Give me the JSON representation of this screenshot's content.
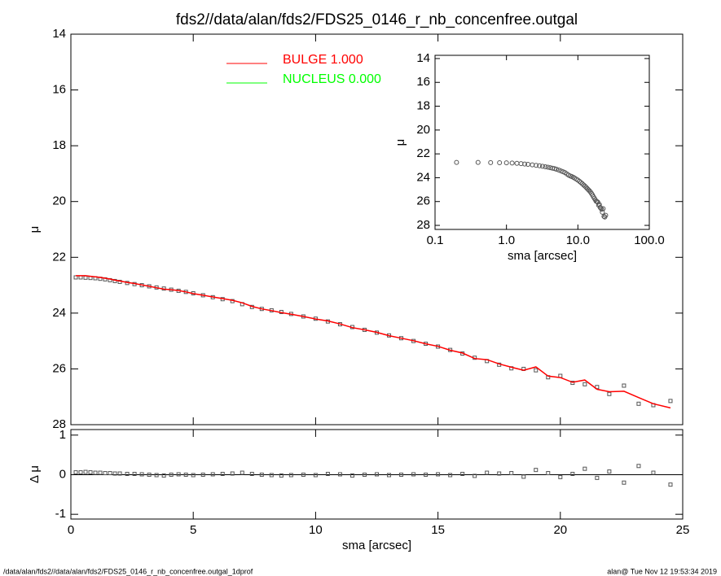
{
  "chart_data": [
    {
      "type": "scatter",
      "title": "fds2//data/alan/fds2/FDS25_0146_r_nb_concenfree.outgal",
      "y_label": "μ",
      "xlim": [
        0,
        25
      ],
      "xticks": [
        0,
        5,
        10,
        15,
        20,
        25
      ],
      "ylim": [
        28,
        14
      ],
      "yticks": [
        14,
        16,
        18,
        20,
        22,
        24,
        26,
        28
      ],
      "legend": [
        {
          "label": "BULGE  1.000",
          "color": "#ff0000"
        },
        {
          "label": "NUCLEUS  0.000",
          "color": "#00ff00"
        }
      ],
      "x": [
        0.2,
        0.4,
        0.6,
        0.8,
        1.0,
        1.2,
        1.4,
        1.6,
        1.8,
        2.0,
        2.3,
        2.6,
        2.9,
        3.2,
        3.5,
        3.8,
        4.1,
        4.4,
        4.7,
        5.0,
        5.4,
        5.8,
        6.2,
        6.6,
        7.0,
        7.4,
        7.8,
        8.2,
        8.6,
        9.0,
        9.5,
        10.0,
        10.5,
        11.0,
        11.5,
        12.0,
        12.5,
        13.0,
        13.5,
        14.0,
        14.5,
        15.0,
        15.5,
        16.0,
        16.5,
        17.0,
        17.5,
        18.0,
        18.5,
        19.0,
        19.5,
        20.0,
        20.5,
        21.0,
        21.5,
        22.0,
        22.6,
        23.2,
        23.8,
        24.5
      ],
      "series": [
        {
          "mark": "square",
          "color": "#555555",
          "values": [
            22.72,
            22.72,
            22.73,
            22.74,
            22.75,
            22.77,
            22.79,
            22.82,
            22.85,
            22.88,
            22.92,
            22.96,
            23.0,
            23.04,
            23.08,
            23.12,
            23.16,
            23.2,
            23.24,
            23.29,
            23.36,
            23.43,
            23.5,
            23.57,
            23.68,
            23.78,
            23.85,
            23.9,
            23.96,
            24.03,
            24.12,
            24.2,
            24.3,
            24.4,
            24.5,
            24.6,
            24.7,
            24.8,
            24.9,
            25.0,
            25.1,
            25.2,
            25.32,
            25.45,
            25.6,
            25.72,
            25.85,
            25.98,
            26.0,
            26.05,
            26.3,
            26.25,
            26.5,
            26.55,
            26.65,
            26.9,
            26.6,
            27.25,
            27.3,
            27.15
          ]
        },
        {
          "mark": "line",
          "color": "#ff0000",
          "values": [
            22.66,
            22.66,
            22.66,
            22.68,
            22.7,
            22.72,
            22.75,
            22.78,
            22.82,
            22.85,
            22.9,
            22.94,
            22.99,
            23.04,
            23.09,
            23.14,
            23.16,
            23.19,
            23.24,
            23.3,
            23.36,
            23.42,
            23.48,
            23.54,
            23.63,
            23.76,
            23.85,
            23.91,
            23.98,
            24.04,
            24.12,
            24.21,
            24.28,
            24.39,
            24.52,
            24.6,
            24.69,
            24.81,
            24.9,
            24.99,
            25.1,
            25.19,
            25.33,
            25.43,
            25.63,
            25.67,
            25.82,
            25.94,
            26.05,
            25.93,
            26.26,
            26.31,
            26.48,
            26.4,
            26.73,
            26.82,
            26.8,
            27.03,
            27.25,
            27.4
          ]
        }
      ]
    },
    {
      "type": "scatter",
      "x_label": "sma [arcsec]",
      "y_label": "Δ μ",
      "xlim": [
        0,
        25
      ],
      "xticks": [
        0,
        5,
        10,
        15,
        20,
        25
      ],
      "ylim": [
        -1.12,
        1.14
      ],
      "yticks": [
        -1,
        0,
        1
      ],
      "reference_line": 0,
      "x": [
        0.2,
        0.4,
        0.6,
        0.8,
        1.0,
        1.2,
        1.4,
        1.6,
        1.8,
        2.0,
        2.3,
        2.6,
        2.9,
        3.2,
        3.5,
        3.8,
        4.1,
        4.4,
        4.7,
        5.0,
        5.4,
        5.8,
        6.2,
        6.6,
        7.0,
        7.4,
        7.8,
        8.2,
        8.6,
        9.0,
        9.5,
        10.0,
        10.5,
        11.0,
        11.5,
        12.0,
        12.5,
        13.0,
        13.5,
        14.0,
        14.5,
        15.0,
        15.5,
        16.0,
        16.5,
        17.0,
        17.5,
        18.0,
        18.5,
        19.0,
        19.5,
        20.0,
        20.5,
        21.0,
        21.5,
        22.0,
        22.6,
        23.2,
        23.8,
        24.5
      ],
      "series": [
        {
          "mark": "square",
          "color": "#555555",
          "values": [
            0.06,
            0.06,
            0.07,
            0.06,
            0.05,
            0.05,
            0.04,
            0.04,
            0.03,
            0.03,
            0.02,
            0.02,
            0.01,
            0.0,
            -0.01,
            -0.02,
            0.0,
            0.01,
            0.0,
            -0.01,
            0.0,
            0.01,
            0.02,
            0.03,
            0.05,
            0.02,
            0.0,
            -0.01,
            -0.02,
            -0.01,
            0.0,
            -0.01,
            0.02,
            0.01,
            -0.02,
            0.0,
            0.01,
            -0.01,
            0.0,
            0.01,
            0.0,
            0.01,
            -0.01,
            0.02,
            -0.03,
            0.05,
            0.03,
            0.04,
            -0.05,
            0.12,
            0.04,
            -0.06,
            0.02,
            0.15,
            -0.08,
            0.08,
            -0.2,
            0.22,
            0.05,
            -0.25
          ]
        }
      ]
    },
    {
      "type": "scatter",
      "x_label": "sma [arcsec]",
      "y_label": "μ",
      "xscale": "log",
      "xlim": [
        0.1,
        100
      ],
      "xticks": [
        0.1,
        {
          "value": 1,
          "label": "1.0"
        },
        {
          "value": 10,
          "label": "10.0"
        },
        {
          "value": 100,
          "label": "100.0"
        }
      ],
      "ylim": [
        28.34,
        13.73
      ],
      "yticks": [
        14,
        16,
        18,
        20,
        22,
        24,
        26,
        28
      ],
      "x": [
        0.2,
        0.4,
        0.6,
        0.8,
        1.0,
        1.2,
        1.4,
        1.6,
        1.8,
        2.0,
        2.3,
        2.6,
        2.9,
        3.2,
        3.5,
        3.8,
        4.1,
        4.4,
        4.7,
        5.0,
        5.4,
        5.8,
        6.2,
        6.6,
        7.0,
        7.4,
        7.8,
        8.2,
        8.6,
        9.0,
        9.5,
        10.0,
        10.5,
        11.0,
        11.5,
        12.0,
        12.5,
        13.0,
        13.5,
        14.0,
        14.5,
        15.0,
        15.5,
        16.0,
        16.5,
        17.0,
        17.5,
        18.0,
        18.5,
        19.0,
        19.5,
        20.0,
        20.5,
        21.0,
        21.5,
        22.0,
        22.6,
        23.2,
        23.8,
        24.5
      ],
      "series": [
        {
          "mark": "circle",
          "color": "#555555",
          "values": [
            22.72,
            22.72,
            22.73,
            22.74,
            22.75,
            22.77,
            22.79,
            22.82,
            22.85,
            22.88,
            22.92,
            22.96,
            23.0,
            23.04,
            23.08,
            23.12,
            23.16,
            23.2,
            23.24,
            23.29,
            23.36,
            23.43,
            23.5,
            23.57,
            23.68,
            23.78,
            23.85,
            23.9,
            23.96,
            24.03,
            24.12,
            24.2,
            24.3,
            24.4,
            24.5,
            24.6,
            24.7,
            24.8,
            24.9,
            25.0,
            25.1,
            25.2,
            25.32,
            25.45,
            25.6,
            25.72,
            25.85,
            25.98,
            26.0,
            26.05,
            26.3,
            26.25,
            26.5,
            26.55,
            26.65,
            26.9,
            26.6,
            27.25,
            27.3,
            27.15
          ]
        }
      ]
    }
  ],
  "footer": {
    "left": "/data/alan/fds2//data/alan/fds2/FDS25_0146_r_nb_concenfree.outgal_1dprof",
    "right": "alan@  Tue Nov 12 19:53:34 2019"
  }
}
